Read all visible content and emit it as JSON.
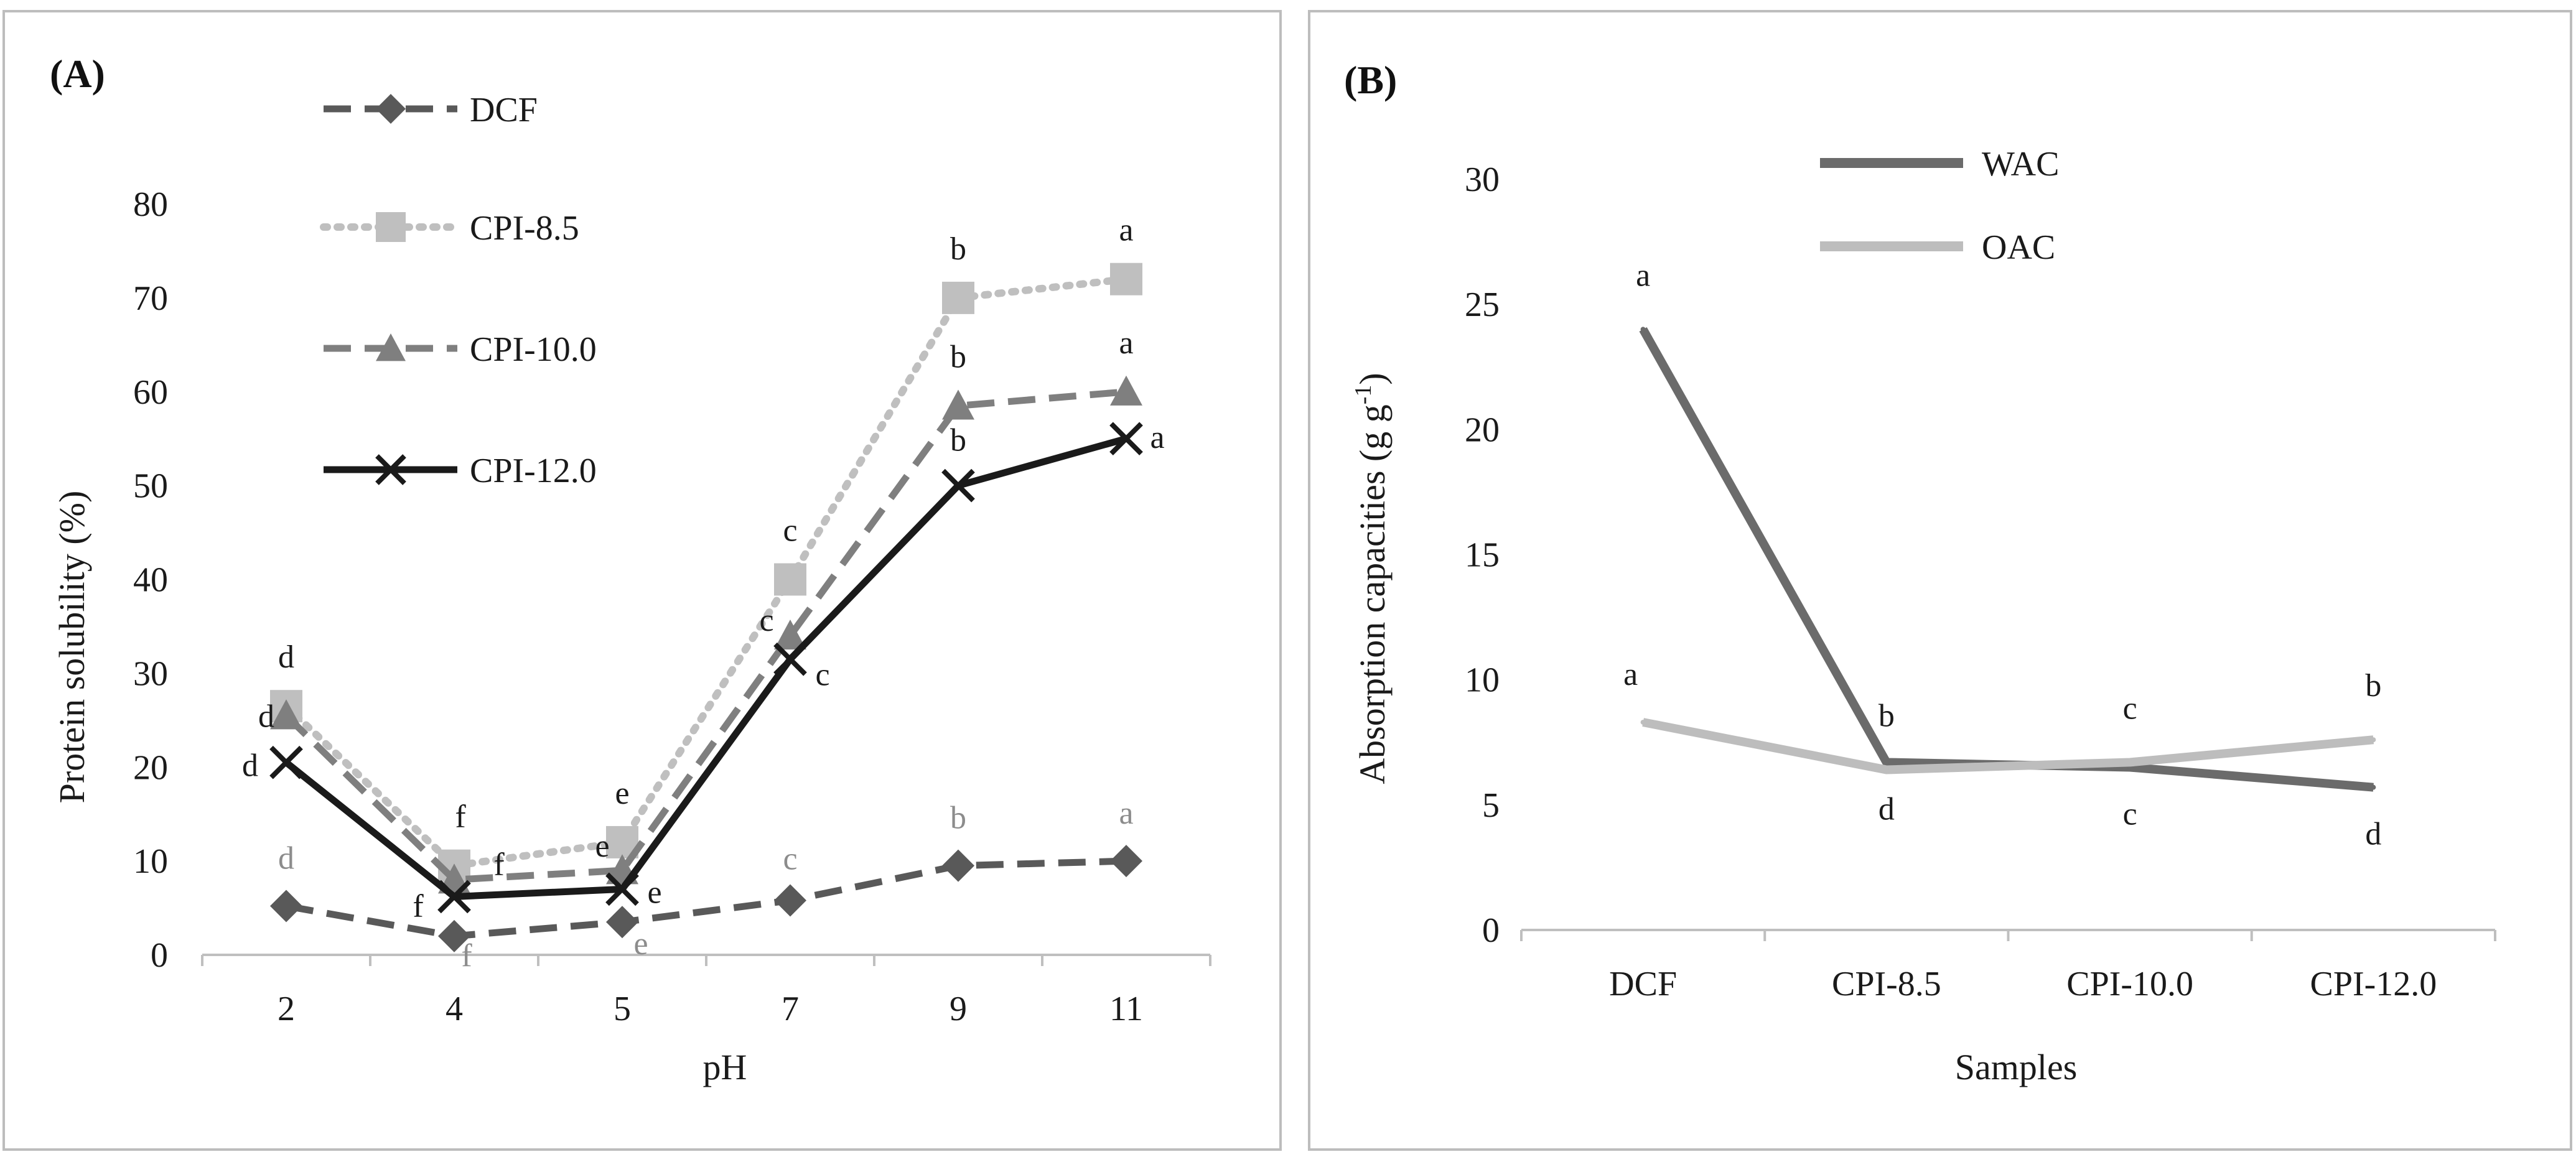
{
  "chart_data": [
    {
      "type": "line",
      "panel_label": "(A)",
      "xlabel": "pH",
      "ylabel": "Protein solubility (%)",
      "categories": [
        "2",
        "4",
        "5",
        "7",
        "9",
        "11"
      ],
      "ylim": [
        0,
        80
      ],
      "yticks": [
        0,
        10,
        20,
        30,
        40,
        50,
        60,
        70,
        80
      ],
      "grid": false,
      "legend_position": "top-left",
      "series": [
        {
          "name": "DCF",
          "values": [
            5.2,
            2.0,
            3.5,
            5.8,
            9.5,
            10.0
          ],
          "letters": [
            "d",
            "f",
            "e",
            "c",
            "b",
            "a"
          ],
          "color": "#595959",
          "dash": "dashed",
          "marker": "diamond"
        },
        {
          "name": "CPI-8.5",
          "values": [
            26.5,
            9.5,
            12.0,
            40.0,
            70.0,
            72.0
          ],
          "letters": [
            "d",
            "f",
            "e",
            "c",
            "b",
            "a"
          ],
          "color": "#bfbfbf",
          "dash": "dotted",
          "marker": "square"
        },
        {
          "name": "CPI-10.0",
          "values": [
            25.5,
            8.0,
            9.0,
            34.0,
            58.5,
            60.0
          ],
          "letters": [
            "d",
            "f",
            "e",
            "c",
            "b",
            "a"
          ],
          "color": "#7f7f7f",
          "dash": "dashed",
          "marker": "triangle"
        },
        {
          "name": "CPI-12.0",
          "values": [
            20.5,
            6.2,
            7.0,
            31.5,
            50.0,
            55.0
          ],
          "letters": [
            "d",
            "f",
            "e",
            "c",
            "b",
            "a"
          ],
          "color": "#1a1a1a",
          "dash": "solid",
          "marker": "x"
        }
      ]
    },
    {
      "type": "line",
      "panel_label": "(B)",
      "xlabel": "Samples",
      "ylabel_main": "Absorption capacities (g g",
      "ylabel_sup": "-1",
      "ylabel_end": ")",
      "categories": [
        "DCF",
        "CPI-8.5",
        "CPI-10.0",
        "CPI-12.0"
      ],
      "ylim": [
        0,
        30
      ],
      "yticks": [
        0,
        5,
        10,
        15,
        20,
        25,
        30
      ],
      "grid": false,
      "legend_position": "top",
      "series": [
        {
          "name": "WAC",
          "values": [
            24.0,
            6.7,
            6.5,
            5.7
          ],
          "letters": [
            "a",
            "d",
            "c",
            "d"
          ],
          "color": "#6b6b6b"
        },
        {
          "name": "OAC",
          "values": [
            8.3,
            6.4,
            6.7,
            7.6
          ],
          "letters": [
            "a",
            "b",
            "c",
            "b"
          ],
          "color": "#bdbdbd"
        }
      ]
    }
  ]
}
